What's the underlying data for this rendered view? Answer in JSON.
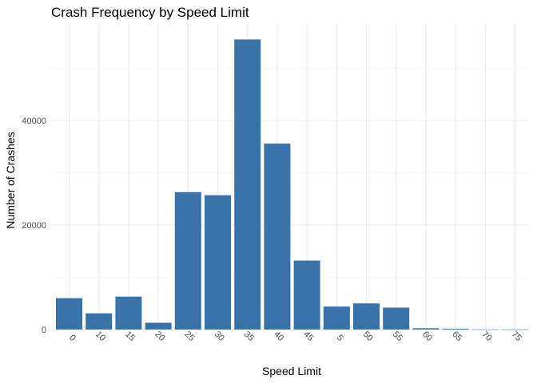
{
  "chart_data": {
    "type": "bar",
    "title": "Crash Frequency by Speed Limit",
    "xlabel": "Speed Limit",
    "ylabel": "Number of Crashes",
    "categories": [
      "0",
      "10",
      "15",
      "20",
      "25",
      "30",
      "35",
      "40",
      "45",
      "5",
      "50",
      "55",
      "60",
      "65",
      "70",
      "75"
    ],
    "values": [
      6000,
      3100,
      6300,
      1300,
      26300,
      25700,
      55500,
      35600,
      13200,
      4400,
      5000,
      4200,
      250,
      150,
      30,
      20
    ],
    "yticks": [
      0,
      20000,
      40000
    ],
    "ylim": [
      0,
      58000
    ],
    "grid": true,
    "bar_color": "#3a72aa",
    "xtick_rotation": 45
  }
}
